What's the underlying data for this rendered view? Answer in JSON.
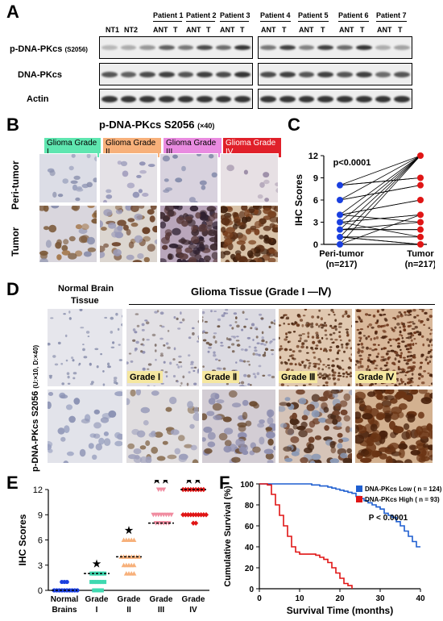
{
  "panels": {
    "A": "A",
    "B": "B",
    "C": "C",
    "D": "D",
    "E": "E",
    "F": "F"
  },
  "panelA": {
    "top_lanes_left": [
      "NT1",
      "NT2",
      "ANT",
      "T",
      "ANT",
      "T",
      "ANT",
      "T"
    ],
    "patients_left": [
      "Patient 1",
      "Patient 2",
      "Patient 3"
    ],
    "patients_right": [
      "Patient 4",
      "Patient 5",
      "Patient 6",
      "Patient 7"
    ],
    "lanes_right": [
      "ANT",
      "T",
      "ANT",
      "T",
      "ANT",
      "T",
      "ANT",
      "T"
    ],
    "row_labels": [
      "p-DNA-PKcs",
      "DNA-PKcs",
      "Actin"
    ],
    "row1_suffix": "(S2056)"
  },
  "panelB": {
    "title": "p-DNA-PKcs S2056",
    "title_suffix": "(×40)",
    "grades": [
      "Glioma Grade I",
      "Glioma Grade II",
      "Glioma Grade III",
      "Glioma Grade IV"
    ],
    "grade_colors": [
      "#5fe6b0",
      "#f7b07a",
      "#e98be0",
      "#e0202a"
    ],
    "rows": [
      "Peri-tumor",
      "Tumor"
    ]
  },
  "panelD": {
    "normal_title_1": "Normal Brain",
    "normal_title_2": "Tissue",
    "glioma_title": "Glioma Tissue (Grade I —Ⅳ)",
    "side_label": "p-DNA-PKcs S2056",
    "side_label_suffix": "(U:×10, D:×40)",
    "grades": [
      "Grade Ⅰ",
      "Grade Ⅱ",
      "Grade Ⅲ",
      "Grade Ⅳ"
    ]
  },
  "chart_data": [
    {
      "type": "scatter",
      "panel": "C",
      "title": "",
      "ylabel": "IHC Scores",
      "ylim": [
        0,
        12
      ],
      "yticks": [
        0,
        3,
        6,
        9,
        12
      ],
      "categories": [
        "Peri-tumor\n(n=217)",
        "Tumor\n(n=217)"
      ],
      "category_line1": [
        "Peri-tumor",
        "Tumor"
      ],
      "category_line2": [
        "(n=217)",
        "(n=217)"
      ],
      "annotation": "p<0.0001",
      "series": [
        {
          "colors": [
            "#1a3fe0",
            "#e01515"
          ],
          "peri": [
            0,
            1,
            1,
            2,
            2,
            3,
            3,
            4,
            4,
            6,
            6,
            8,
            8,
            0,
            1,
            2,
            3,
            4,
            6,
            8,
            2,
            3,
            4,
            1,
            0
          ],
          "tumor": [
            0,
            0,
            1,
            2,
            3,
            4,
            4,
            6,
            6,
            8,
            8,
            9,
            9,
            12,
            12,
            12,
            12,
            12,
            12,
            12,
            2,
            1,
            3,
            0,
            4
          ]
        }
      ],
      "peri_values": [
        0,
        1,
        2,
        3,
        4,
        6,
        8
      ],
      "tumor_values": [
        0,
        1,
        2,
        3,
        4,
        6,
        8,
        9,
        12
      ]
    },
    {
      "type": "scatter",
      "panel": "E",
      "ylabel": "IHC Scores",
      "ylim": [
        0,
        12
      ],
      "yticks": [
        0,
        3,
        6,
        9,
        12
      ],
      "categories": [
        "Normal Brains",
        "Grade I",
        "Grade II",
        "Grade III",
        "Grade IV"
      ],
      "category_line1": [
        "Normal",
        "Grade",
        "Grade",
        "Grade",
        "Grade"
      ],
      "category_line2": [
        "Brains",
        "I",
        "II",
        "III",
        "IV"
      ],
      "medians": [
        0,
        2,
        4,
        8,
        12
      ],
      "stars": [
        "",
        "★",
        "★",
        "★★",
        "★★"
      ],
      "colors": [
        "#1a3fe0",
        "#3fd9b0",
        "#f7b07a",
        "#f08ca0",
        "#e01515"
      ],
      "markers": [
        "circle",
        "square",
        "triangle-up",
        "triangle-down",
        "diamond"
      ],
      "points": [
        [
          0,
          0,
          0,
          0,
          0,
          0,
          0,
          0,
          0,
          0,
          1,
          1,
          1
        ],
        [
          0,
          0,
          0,
          0,
          1,
          1,
          1,
          1,
          1,
          1,
          2,
          2,
          2,
          2,
          2,
          2
        ],
        [
          2,
          2,
          2,
          2,
          3,
          3,
          3,
          3,
          3,
          4,
          4,
          4,
          4,
          4,
          4,
          4,
          4,
          6,
          6,
          6,
          6,
          6
        ],
        [
          8,
          8,
          8,
          8,
          8,
          8,
          9,
          9,
          9,
          9,
          9,
          9,
          9,
          9,
          12,
          12,
          12
        ],
        [
          8,
          8,
          9,
          9,
          9,
          9,
          9,
          9,
          9,
          9,
          9,
          9,
          12,
          12,
          12,
          12,
          12,
          12,
          12,
          12,
          12
        ]
      ]
    },
    {
      "type": "line",
      "panel": "F",
      "xlabel": "Survival Time (months)",
      "ylabel": "Cumulative Survival (%)",
      "xlim": [
        0,
        40
      ],
      "ylim": [
        0,
        100
      ],
      "xticks": [
        0,
        10,
        20,
        30,
        40
      ],
      "yticks": [
        0,
        20,
        40,
        60,
        80,
        100
      ],
      "annotation": "P < 0.0001",
      "series": [
        {
          "name": "DNA-PKcs Low ( n = 124)",
          "color": "#1f5fd0",
          "x": [
            0,
            12,
            13,
            15,
            17,
            18,
            19,
            20,
            21,
            22,
            23,
            24,
            25,
            26,
            27,
            28,
            29,
            30,
            31,
            32,
            33,
            34,
            35,
            36,
            37,
            38,
            39,
            40
          ],
          "y": [
            100,
            100,
            99,
            98,
            97,
            96,
            95,
            94,
            93,
            92,
            91,
            88,
            86,
            84,
            82,
            80,
            78,
            76,
            72,
            70,
            68,
            64,
            60,
            55,
            50,
            45,
            40,
            40
          ]
        },
        {
          "name": "DNA-PKcs High ( n = 93)",
          "color": "#e01515",
          "x": [
            0,
            2,
            3,
            4,
            5,
            6,
            7,
            8,
            9,
            10,
            12,
            14,
            15,
            16,
            17,
            18,
            19,
            20,
            21,
            22,
            23
          ],
          "y": [
            100,
            99,
            90,
            80,
            70,
            60,
            50,
            40,
            35,
            33,
            33,
            32,
            30,
            28,
            25,
            20,
            15,
            10,
            5,
            3,
            0
          ]
        }
      ]
    }
  ]
}
